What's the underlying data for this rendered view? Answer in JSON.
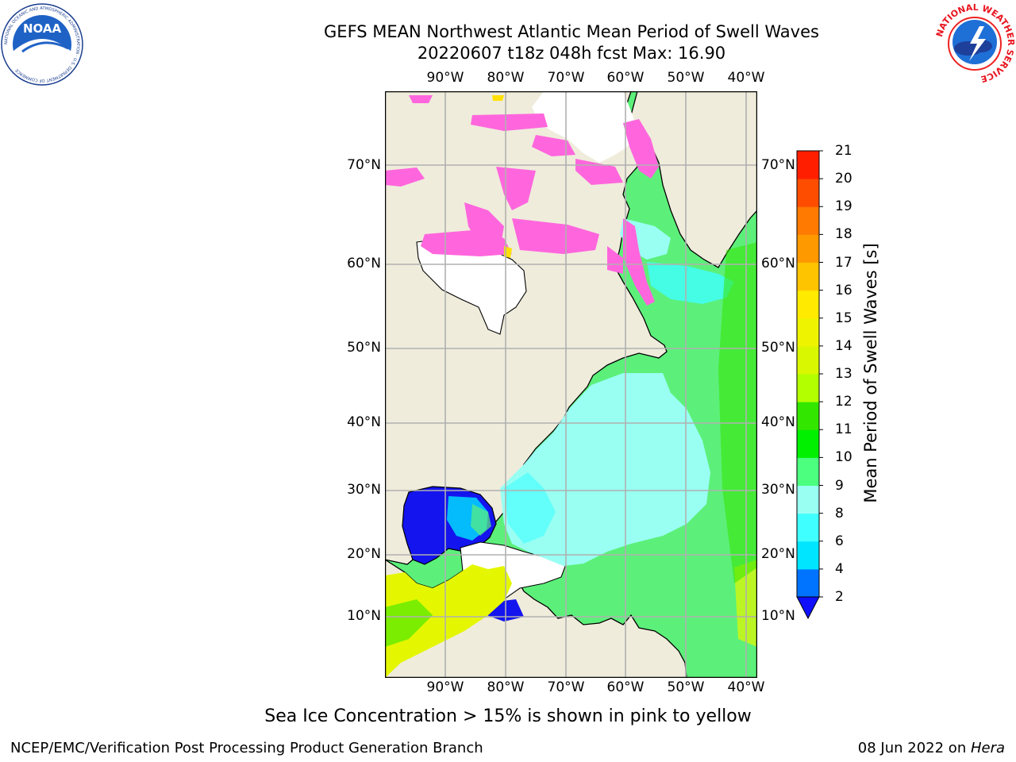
{
  "header": {
    "title_line1": "GEFS MEAN Northwest Atlantic Mean Period of Swell Waves",
    "title_line2": "20220607 t18z 048h fcst   Max: 16.90"
  },
  "logos": {
    "noaa_text": "NOAA",
    "noaa_ring_text": "NATIONAL OCEANIC AND ATMOSPHERIC ADMINISTRATION · U.S. DEPARTMENT OF COMMERCE",
    "nws_ring_text": "NATIONAL WEATHER SERVICE"
  },
  "map": {
    "lon_labels": [
      "90°W",
      "80°W",
      "70°W",
      "60°W",
      "50°W",
      "40°W"
    ],
    "lat_labels": [
      "70°N",
      "60°N",
      "50°N",
      "40°N",
      "30°N",
      "20°N",
      "10°N"
    ],
    "colors": {
      "land": "#efecdc",
      "sea_ice": "#ff66dd",
      "grid": "#b0b0b0"
    }
  },
  "colorbar": {
    "label": "Mean Period of Swell Waves [s]",
    "ticks": [
      "2",
      "4",
      "6",
      "8",
      "9",
      "10",
      "11",
      "12",
      "13",
      "14",
      "15",
      "16",
      "17",
      "18",
      "19",
      "20",
      "21"
    ],
    "colors": [
      "#0073ff",
      "#00e5ff",
      "#40ffff",
      "#99fff3",
      "#4cff7f",
      "#00f000",
      "#33e600",
      "#b3ff00",
      "#d9f700",
      "#eef300",
      "#ffea00",
      "#ffc400",
      "#ff9900",
      "#ff7a00",
      "#ff4d00",
      "#ff1f00"
    ],
    "under_color": "#1010ff"
  },
  "notes": {
    "sea_ice": "Sea Ice Concentration > 15% is shown in pink to yellow"
  },
  "footer": {
    "left": "NCEP/EMC/Verification Post Processing Product Generation Branch",
    "right_date": "08 Jun 2022 on ",
    "right_host": "Hera"
  }
}
